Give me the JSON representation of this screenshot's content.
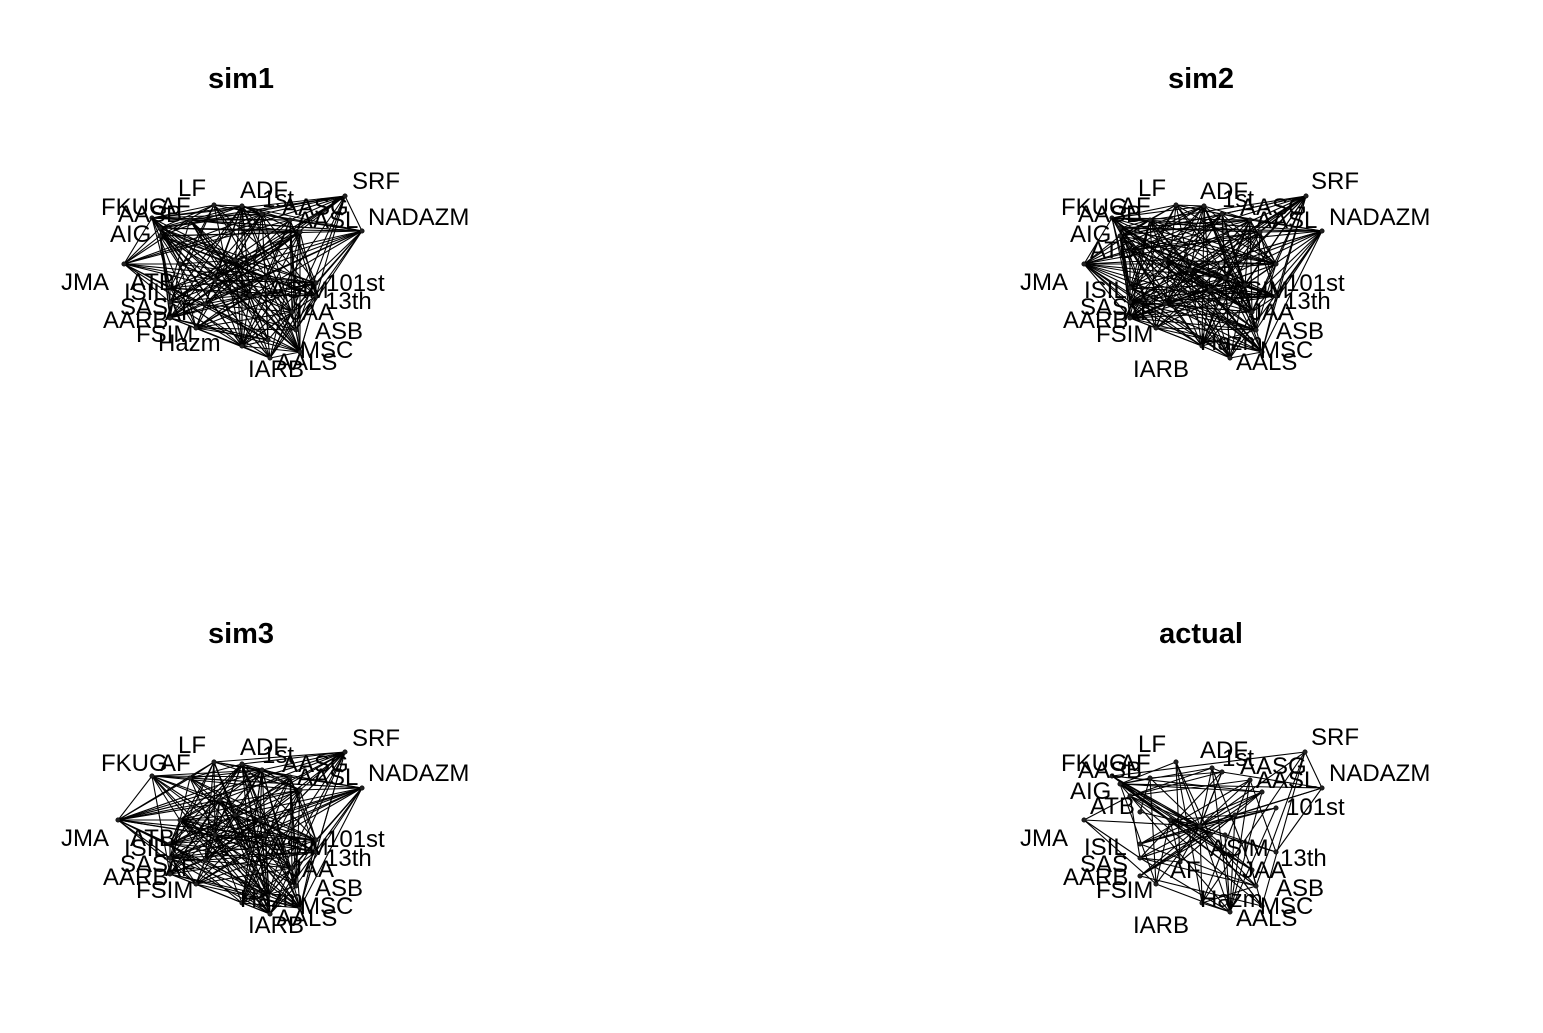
{
  "figure": {
    "panels": [
      {
        "title": "sim1",
        "labels": [
          "LF",
          "ADF",
          "SRF",
          "FKUG",
          "AASB",
          "AF",
          "1st",
          "AASG",
          "AASL",
          "NADAZM",
          "AIG",
          "JMA",
          "ATB",
          "101st",
          "ISIL",
          "SAS",
          "AF",
          "ASIM",
          "13th",
          "AARB",
          "JAA",
          "ASB",
          "FSIM",
          "Hazm",
          "MSC",
          "AALS",
          "IARB"
        ]
      },
      {
        "title": "sim2",
        "labels": [
          "LF",
          "ADF",
          "SRF",
          "FKUG",
          "AASB",
          "AF",
          "1st",
          "AASG",
          "AASL",
          "NADAZM",
          "AIG",
          "JMA",
          "ATB",
          "101st",
          "ISIL",
          "SAS",
          "AF",
          "ASIM",
          "13th",
          "AARB",
          "JAA",
          "ASB",
          "FSIM",
          "Hazm",
          "MSC",
          "AALS",
          "IARB"
        ]
      },
      {
        "title": "sim3",
        "labels": [
          "LF",
          "ADF",
          "SRF",
          "FKUG",
          "AF",
          "1st",
          "AASG",
          "AASL",
          "NADAZM",
          "JMA",
          "ATB",
          "101st",
          "ISIL",
          "SAS",
          "AF",
          "ASIM",
          "13th",
          "AARB",
          "JAA",
          "ASB",
          "FSIM",
          "Hazm",
          "MSC",
          "AALS",
          "IARB"
        ]
      },
      {
        "title": "actual",
        "labels": [
          "LF",
          "ADF",
          "SRF",
          "FKUG",
          "AASB",
          "AF",
          "1st",
          "AASG",
          "AASL",
          "NADAZM",
          "AIG",
          "JMA",
          "ATB",
          "101st",
          "ISIL",
          "SAS",
          "AF",
          "ASIM",
          "13th",
          "AARB",
          "JAA",
          "ASB",
          "FSIM",
          "Hazm",
          "MSC",
          "AALS",
          "IARB"
        ]
      }
    ]
  }
}
